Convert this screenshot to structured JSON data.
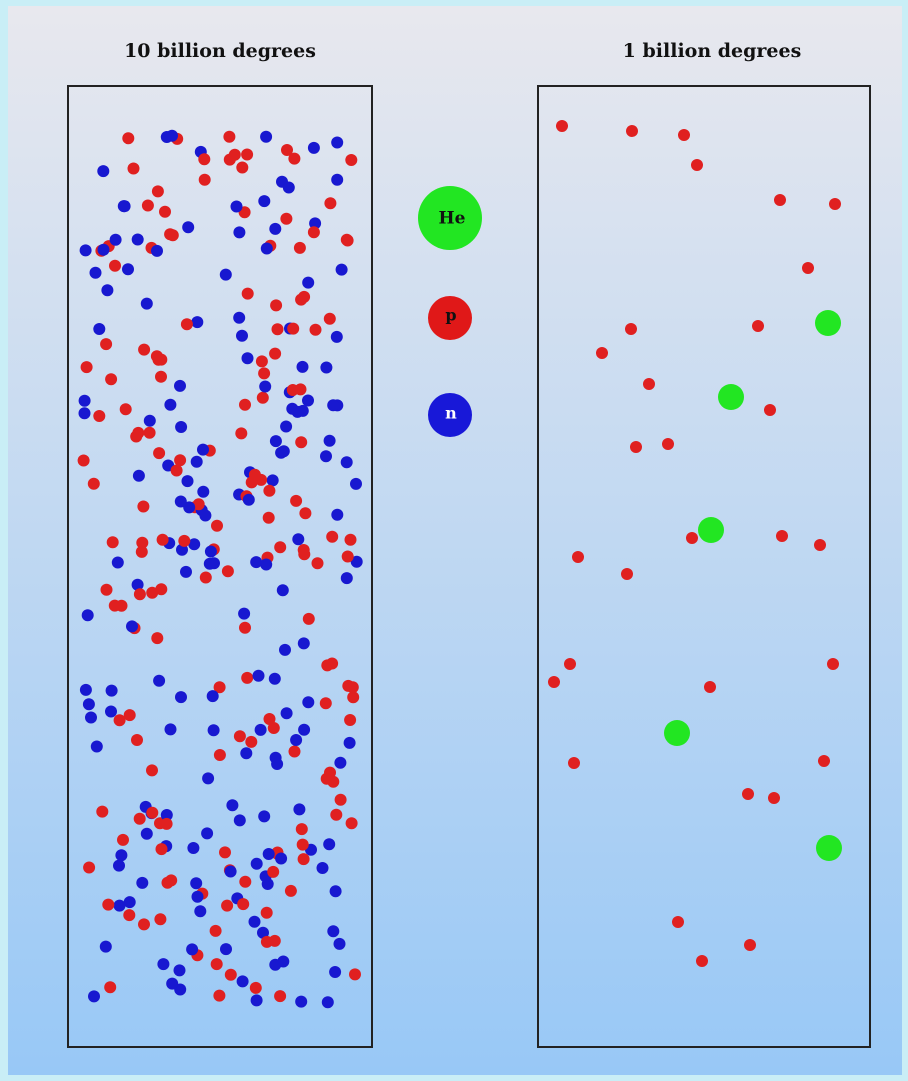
{
  "panels": [
    {
      "title": "10 billion degrees"
    },
    {
      "title": "1 billion degrees"
    }
  ],
  "legend": [
    {
      "label": "He"
    },
    {
      "label": "p"
    },
    {
      "label": "n"
    }
  ]
}
